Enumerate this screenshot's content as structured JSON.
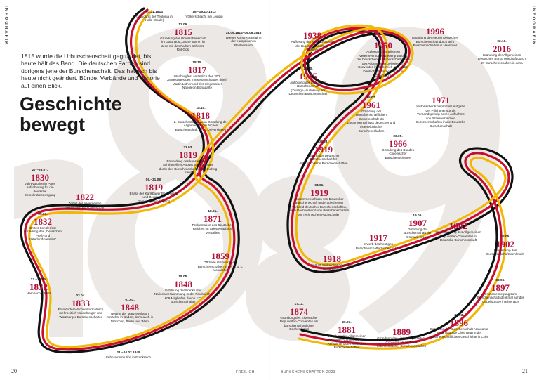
{
  "side_label": "INFOGRAFIK",
  "intro": "1815 wurde die Urburschenschaft gegründet, bis heute hält das Band. Die deutschen Farben sind übrigens jene der Burschenschaft. Das hat sich bis heute nicht geändert. Bünde, Verbände und Historie auf einen Blick.",
  "headline": "Geschichte\nbewegt",
  "footer": {
    "left_page": "20",
    "right_page": "21",
    "publisher": "FREILICH",
    "issue": "BURSCHENSCHAFTEN 2023"
  },
  "colors": {
    "accent": "#b3123a",
    "black": "#111111",
    "red": "#c8102e",
    "gold": "#f2b705",
    "ghost": "#ece8e6"
  },
  "events": [
    {
      "date": "01.11.1814",
      "year": "",
      "text": "Gründung der Teutonia in Halle (Saale)"
    },
    {
      "date": "16.–19.10.1813",
      "year": "",
      "text": "Völkerschlacht bei Leipzig"
    },
    {
      "date": "12.06.",
      "year": "1815",
      "text": "Gründung der Urburschenschaft im Gasthaus „Grüne Tanne“ in Jena mit den Farben Schwarz-Rot-Gold"
    },
    {
      "date": "18.09.1814–09.06.1815",
      "year": "",
      "text": "Wiener Kongress Beginn der europäischen Restauration"
    },
    {
      "date": "18.10.",
      "year": "1817",
      "text": "Wartburgfest anlässlich des 300. Jahrestages des Thesenanschlages durch Martin Luther und des Sieges über Napoleon Bonaparte"
    },
    {
      "date": "18.10.",
      "year": "1818",
      "text": "2. Burschentag in Jena Gründung der Allgemeinen Deutschen Burschenschaft an 14 Universitäten"
    },
    {
      "date": "23.03.",
      "year": "1819",
      "text": "Ermordung des konservativen Schriftstellers August von Kotzebue durch den Burschenschafter Karl Ludwig Sand"
    },
    {
      "date": "06.–31.08.",
      "year": "1819",
      "text": "Erlass der Karlsbader Beschlüsse und Beginn der Demagogenverfolgung"
    },
    {
      "date": "27.–29.07.",
      "year": "1830",
      "text": "Julirevolution in Paris Aufschwung für die deutsche Demokratiebewegung"
    },
    {
      "date": "",
      "year": "1822",
      "text": "Zerfall der Allgemeinen Deutschen Burschenschaft"
    },
    {
      "date": "29.01.",
      "year": "1832",
      "text": "Erstes Schülerfest Gründung des „Deutschen Preß- und Vaterlandsvereins“"
    },
    {
      "date": "27.–30.05.",
      "year": "1832",
      "text": "Hambacher Fest"
    },
    {
      "date": "03.04.",
      "year": "1833",
      "text": "Frankfurter Wachensturm durch mehrheitlich Heidelberger und Würzburger Burschenschafter"
    },
    {
      "date": "01.03.",
      "year": "1848",
      "text": "Beginn der Märzrevolution zunächst in Baden, dann auch in München, Berlin und Wien"
    },
    {
      "date": "18.05.",
      "year": "1848",
      "text": "Eröffnung der Frankfurter Nationalversammlung in der Paulskirche 809 Mitglieder, davon 173 Burschenschafter"
    },
    {
      "date": "21.–24.02.1848",
      "year": "",
      "text": "Februarrevolution in Frankreich"
    },
    {
      "date": "18.01.",
      "year": "1871",
      "text": "Proklamation des Deutschen Reiches im Spiegelsaal von Versailles"
    },
    {
      "date": "",
      "year": "1859",
      "text": "Offizielle Gründung von Burschenschaften in der k. u. k. Monarchie"
    },
    {
      "date": "",
      "year": "1938",
      "text": "Auflösung der Mitgliedsbünde der Burschenschaft der Ostmark"
    },
    {
      "date": "16.10.",
      "year": "1935",
      "text": "Auflösung der Deutschen Burschenschaft (Zwangs-)Auflösung der Deutschen Burschenschaft"
    },
    {
      "date": "03.08.",
      "year": "1919",
      "text": "Öffnung der Deutschen Burschenschaft für österreichische Burschenschaften"
    },
    {
      "date": "04.01.",
      "year": "1919",
      "text": "Zusammenschluss von Deutscher Burschenschaft und Rüdesheimer Verband deutscher Burschenschaften, dem Dachverband von Burschenschaften an Technischen Hochschulen"
    },
    {
      "date": "",
      "year": "1917",
      "text": "Erwerb des heutigen Burschenschafterturmes in Linz"
    },
    {
      "date": "",
      "year": "1918",
      "text": "Verlust zahlreicher deutscher Universitäten"
    },
    {
      "date": "17.11.",
      "year": "1874",
      "text": "Gründung des Eisenacher Deputierten-Conventes als burschenschaftlicher Dachverband"
    },
    {
      "date": "20.07.",
      "year": "1881",
      "text": "Gründung des Allgemeinen Deputierten-Conventes keine Aufnahme österreichischer Burschenschaften"
    },
    {
      "date": "",
      "year": "1889",
      "text": "Gründung des Linzer Deputierten-Convents als Verband österreichischer Burschenschaften"
    },
    {
      "date": "31.03.",
      "year": "1896",
      "text": "Gründung der Burschenschaft Araucania in Santiago de Chile Beginn der burschenschaftlichen Geschichte in Chile"
    },
    {
      "date": "08.06.",
      "year": "1897",
      "text": "Grundsteinlegung zum Burschenschaftsdenkmal auf der Göpelskuppe in Eisenach"
    },
    {
      "date": "22.05.",
      "year": "1902",
      "text": "Einweihung des Burschenschaftsdenkmals"
    },
    {
      "date": "",
      "year": "1902",
      "text": "Umbenennung des Allgemeinen Deputierten-Conventes in Deutsche Burschenschaft"
    },
    {
      "date": "19.05.",
      "year": "1907",
      "text": "Gründung der Burschenschaft der Ostmark in Linz"
    },
    {
      "date": "",
      "year": "1950",
      "text": "Auflösung des alliierten Vereinsverbotes Wiedergründung der Deutschen Burschenschaft sowie des Allgemeinen Delegierten-Conventes in Österreich (seit 1959: Deutsche Burschenschaft in Österreich)"
    },
    {
      "date": "15.07.",
      "year": "1961",
      "text": "Gründung der Burschenschaftlichen Gemeinschaft als Zusammenschluss deutscher und österreichischer Burschenschaften"
    },
    {
      "date": "",
      "year": "1996",
      "text": "Gründung der Neuen Deutschen Burschenschaft durch acht Burschenschaften in Hannover"
    },
    {
      "date": "02.10.",
      "year": "2016",
      "text": "Gründung der Allgemeinen Deutschen Burschenschaft durch 27 Burschenschaften in Jena"
    },
    {
      "date": "",
      "year": "1971",
      "text": "Historischer Kompromiss Aufgabe der Pflichtmensur als Verbandsprinzip sowie Aufnahme von österreichischen Burschenschaften in die Deutsche Burschenschaft"
    },
    {
      "date": "26.05.",
      "year": "1966",
      "text": "Gründung des Bundes Chilenischer Burschenschaften"
    }
  ]
}
